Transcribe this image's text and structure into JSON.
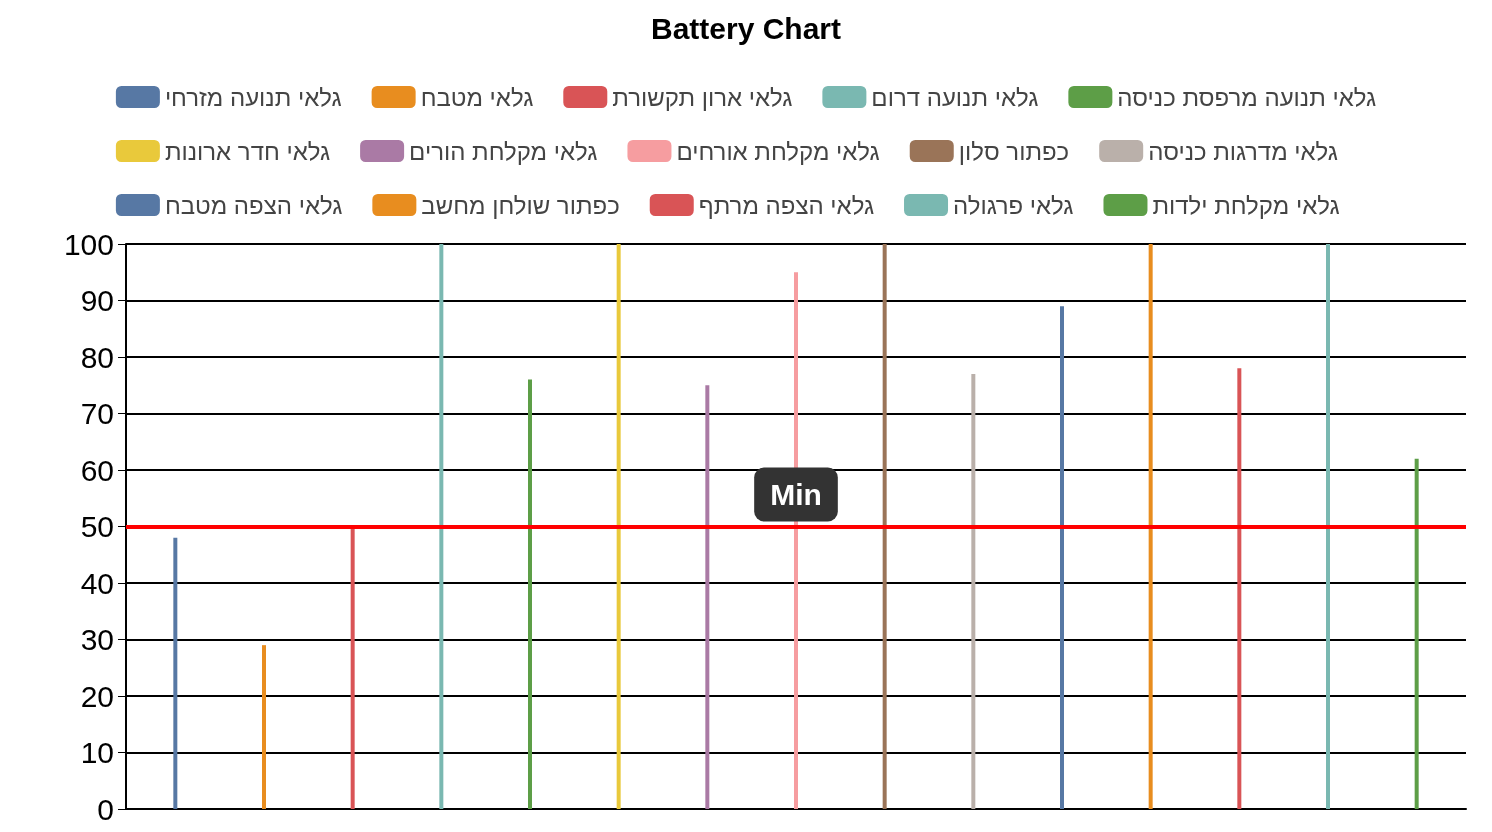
{
  "chart_data": {
    "type": "bar",
    "title": "Battery Chart",
    "categories": [
      null
    ],
    "series": [
      {
        "name": "גלאי תנועה מזרחי",
        "color": "#5778a4",
        "values": [
          48
        ]
      },
      {
        "name": "גלאי מטבח",
        "color": "#e88d1f",
        "values": [
          29
        ]
      },
      {
        "name": "גלאי ארון תקשורת",
        "color": "#d95456",
        "values": [
          50
        ]
      },
      {
        "name": "גלאי תנועה דרום",
        "color": "#7ab8b1",
        "values": [
          100
        ]
      },
      {
        "name": "גלאי תנועה מרפסת כניסה",
        "color": "#5d9e47",
        "values": [
          76
        ]
      },
      {
        "name": "גלאי חדר ארונות",
        "color": "#e9c93b",
        "values": [
          100
        ]
      },
      {
        "name": "גלאי מקלחת הורים",
        "color": "#aa7aa5",
        "values": [
          75
        ]
      },
      {
        "name": "גלאי מקלחת אורחים",
        "color": "#f69da0",
        "values": [
          95
        ]
      },
      {
        "name": "כפתור סלון",
        "color": "#9a7458",
        "values": [
          100
        ]
      },
      {
        "name": "גלאי מדרגות כניסה",
        "color": "#bab0aa",
        "values": [
          77
        ]
      },
      {
        "name": "גלאי הצפה מטבח",
        "color": "#5778a4",
        "values": [
          89
        ]
      },
      {
        "name": "כפתור שולחן מחשב",
        "color": "#e88d1f",
        "values": [
          100
        ]
      },
      {
        "name": "גלאי הצפה מרתף",
        "color": "#d95456",
        "values": [
          78
        ]
      },
      {
        "name": "גלאי פרגולה",
        "color": "#7ab8b1",
        "values": [
          100
        ]
      },
      {
        "name": "גלאי מקלחת ילדות",
        "color": "#5d9e47",
        "values": [
          62
        ]
      }
    ],
    "ylim": [
      0,
      100
    ],
    "yticks": [
      0,
      10,
      20,
      30,
      40,
      50,
      60,
      70,
      80,
      90,
      100
    ],
    "grid": "y",
    "legend": "top",
    "ref_lines": [
      {
        "axis": "y",
        "value": 50,
        "label": "Min",
        "color": "#ff0000"
      }
    ]
  }
}
